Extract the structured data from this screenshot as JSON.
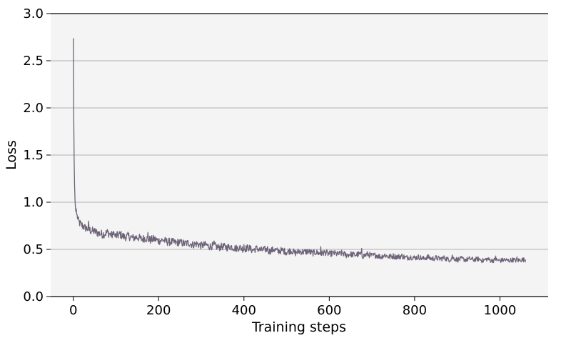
{
  "chart_data": {
    "type": "line",
    "title": "",
    "xlabel": "Training steps",
    "ylabel": "Loss",
    "xlim": [
      -53,
      1113
    ],
    "ylim": [
      0.0,
      3.0
    ],
    "xticks": [
      0,
      200,
      400,
      600,
      800,
      1000
    ],
    "xtick_labels": [
      "0",
      "200",
      "400",
      "600",
      "800",
      "1000"
    ],
    "yticks": [
      0.0,
      0.5,
      1.0,
      1.5,
      2.0,
      2.5,
      3.0
    ],
    "ytick_labels": [
      "0.0",
      "0.5",
      "1.0",
      "1.5",
      "2.0",
      "2.5",
      "3.0"
    ],
    "grid": "horizontal",
    "legend": "none",
    "colors": {
      "line": "#6e6378",
      "plot_background": "#f4f4f4",
      "grid": "#b0b0b0",
      "axis": "#000000"
    },
    "series": [
      {
        "x": [
          0,
          1,
          2,
          3,
          4,
          5,
          6,
          7,
          8,
          10,
          12,
          15,
          18,
          22,
          27,
          33,
          40,
          50,
          60,
          70,
          80,
          90,
          100,
          110,
          120,
          130,
          140,
          150,
          160,
          170,
          180,
          190,
          200,
          210,
          220,
          230,
          240,
          250,
          260,
          270,
          280,
          290,
          300,
          310,
          320,
          330,
          340,
          350,
          360,
          370,
          380,
          390,
          400,
          410,
          420,
          430,
          440,
          450,
          460,
          470,
          480,
          490,
          500,
          510,
          520,
          530,
          540,
          550,
          560,
          570,
          580,
          590,
          600,
          610,
          620,
          630,
          640,
          650,
          660,
          670,
          680,
          690,
          700,
          710,
          720,
          730,
          740,
          750,
          760,
          770,
          780,
          790,
          800,
          810,
          820,
          830,
          840,
          850,
          860,
          870,
          880,
          890,
          900,
          910,
          920,
          930,
          940,
          950,
          960,
          970,
          980,
          990,
          1000,
          1010,
          1020,
          1030,
          1040,
          1050,
          1060
        ],
        "y": [
          2.74,
          1.95,
          1.45,
          1.18,
          1.03,
          0.95,
          0.9,
          0.93,
          0.87,
          0.84,
          0.8,
          0.78,
          0.76,
          0.75,
          0.73,
          0.72,
          0.7,
          0.69,
          0.67,
          0.66,
          0.68,
          0.65,
          0.64,
          0.66,
          0.63,
          0.64,
          0.62,
          0.63,
          0.61,
          0.62,
          0.6,
          0.61,
          0.59,
          0.6,
          0.58,
          0.58,
          0.57,
          0.58,
          0.56,
          0.57,
          0.55,
          0.56,
          0.54,
          0.55,
          0.53,
          0.54,
          0.52,
          0.53,
          0.52,
          0.53,
          0.51,
          0.52,
          0.5,
          0.52,
          0.49,
          0.51,
          0.49,
          0.5,
          0.48,
          0.5,
          0.48,
          0.49,
          0.47,
          0.49,
          0.46,
          0.48,
          0.47,
          0.48,
          0.46,
          0.47,
          0.45,
          0.47,
          0.45,
          0.46,
          0.45,
          0.46,
          0.44,
          0.45,
          0.44,
          0.45,
          0.43,
          0.45,
          0.43,
          0.44,
          0.42,
          0.44,
          0.42,
          0.43,
          0.42,
          0.43,
          0.41,
          0.42,
          0.41,
          0.42,
          0.4,
          0.42,
          0.4,
          0.41,
          0.4,
          0.41,
          0.39,
          0.41,
          0.39,
          0.4,
          0.39,
          0.4,
          0.39,
          0.4,
          0.38,
          0.4,
          0.38,
          0.39,
          0.38,
          0.39,
          0.38,
          0.39,
          0.38,
          0.39,
          0.39
        ],
        "spikes": [
          [
            36,
            0.8
          ],
          [
            95,
            0.69
          ],
          [
            175,
            0.68
          ],
          [
            252,
            0.6
          ],
          [
            330,
            0.59
          ],
          [
            400,
            0.55
          ],
          [
            455,
            0.53
          ],
          [
            580,
            0.53
          ],
          [
            676,
            0.51
          ],
          [
            888,
            0.44
          ],
          [
            990,
            0.43
          ],
          [
            1040,
            0.42
          ]
        ]
      }
    ]
  }
}
